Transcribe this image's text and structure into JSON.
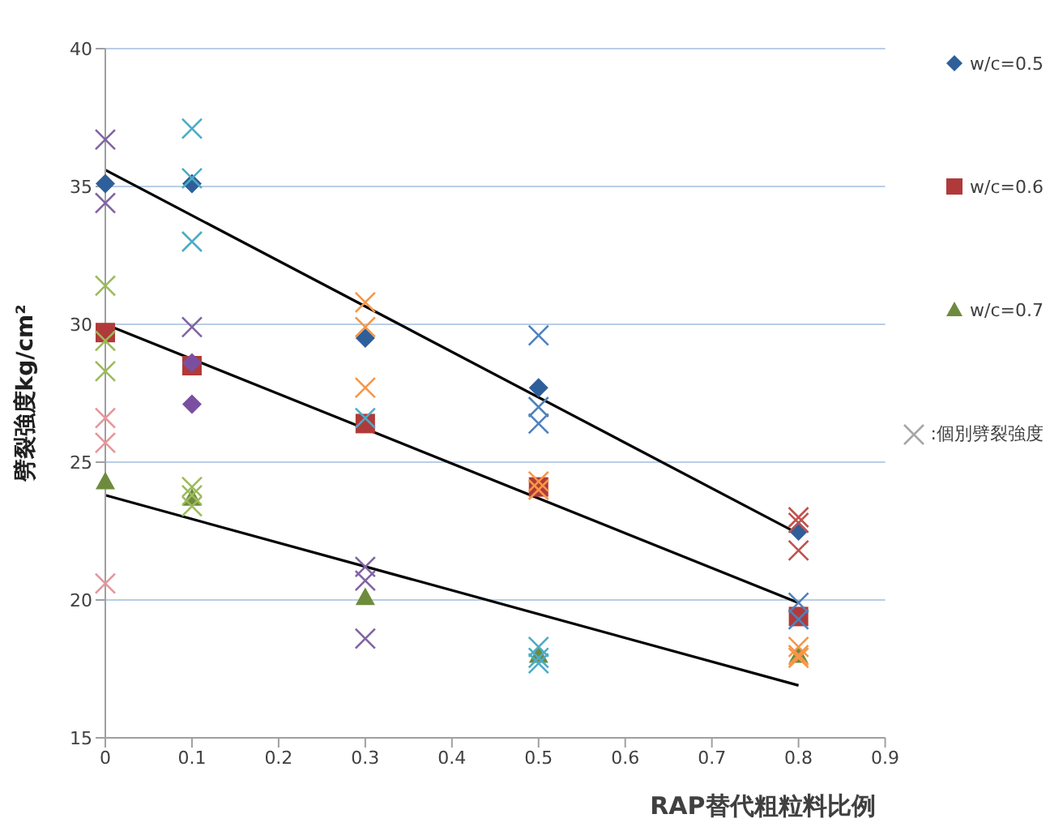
{
  "chart_data": {
    "type": "scatter",
    "xlabel": "RAP替代粗粒料比例",
    "ylabel": "劈裂強度kg/cm²",
    "xlim": [
      0,
      0.9
    ],
    "xticks": [
      0,
      0.1,
      0.2,
      0.3,
      0.4,
      0.5,
      0.6,
      0.7,
      0.8,
      0.9
    ],
    "ylim": [
      15,
      40
    ],
    "yticks": [
      15,
      20,
      25,
      30,
      35,
      40
    ],
    "grid": "y",
    "legend": "top right",
    "series": [
      {
        "name": "w/c=0.5",
        "marker": "diamond",
        "color": "#2f5f9a",
        "x": [
          0,
          0.1,
          0.3,
          0.5,
          0.8
        ],
        "values": [
          35.1,
          35.1,
          29.5,
          27.7,
          22.5
        ]
      },
      {
        "name": "w/c=0.6",
        "marker": "square",
        "color": "#b03a3a",
        "x": [
          0,
          0.1,
          0.3,
          0.5,
          0.8
        ],
        "values": [
          29.7,
          28.5,
          26.4,
          24.1,
          19.4
        ]
      },
      {
        "name": "w/c=0.7",
        "marker": "triangle",
        "color": "#6e8b3d",
        "x": [
          0,
          0.1,
          0.3,
          0.5,
          0.8
        ],
        "values": [
          24.3,
          23.7,
          20.1,
          18.0,
          18.0
        ]
      },
      {
        "marker": "diamond",
        "color": "#7b4fa0",
        "x": [
          0.1,
          0.1
        ],
        "values": [
          28.6,
          27.1
        ]
      },
      {
        "name": ":個別劈裂強度",
        "marker": "cross",
        "color": "#a6a6a6",
        "x": [
          0,
          0,
          0,
          0,
          0,
          0,
          0,
          0,
          0.1,
          0.1,
          0.1,
          0.1,
          0.1,
          0.1,
          0.1,
          0.3,
          0.3,
          0.3,
          0.3,
          0.3,
          0.3,
          0.3,
          0.5,
          0.5,
          0.5,
          0.5,
          0.5,
          0.5,
          0.5,
          0.5,
          0.8,
          0.8,
          0.8,
          0.8,
          0.8,
          0.8,
          0.8,
          0.8
        ],
        "values": [
          36.7,
          34.4,
          31.4,
          29.4,
          28.3,
          26.6,
          25.7,
          20.6,
          37.1,
          35.3,
          33.0,
          29.9,
          24.1,
          23.8,
          23.4,
          30.8,
          29.9,
          27.7,
          26.6,
          21.2,
          20.7,
          18.6,
          29.6,
          27.0,
          26.4,
          24.3,
          24.0,
          18.3,
          17.9,
          17.7,
          23.0,
          22.8,
          21.8,
          19.9,
          19.3,
          18.3,
          18.0,
          17.9
        ],
        "colors": [
          "#8064a2",
          "#8064a2",
          "#9bbb59",
          "#9bbb59",
          "#9bbb59",
          "#e6969a",
          "#e6969a",
          "#e6969a",
          "#4bacc6",
          "#4bacc6",
          "#4bacc6",
          "#8064a2",
          "#9bbb59",
          "#9bbb59",
          "#9bbb59",
          "#f79646",
          "#f79646",
          "#f79646",
          "#4bacc6",
          "#8064a2",
          "#8064a2",
          "#8064a2",
          "#4f81bd",
          "#4f81bd",
          "#4f81bd",
          "#f79646",
          "#f79646",
          "#4bacc6",
          "#4bacc6",
          "#4bacc6",
          "#c0504d",
          "#c0504d",
          "#c0504d",
          "#4f81bd",
          "#4f81bd",
          "#f79646",
          "#f79646",
          "#f79646"
        ]
      },
      {
        "type": "line",
        "marker": "none",
        "line_style": "solid",
        "color": "#000000",
        "x": [
          0,
          0.8
        ],
        "values": [
          35.6,
          22.4
        ]
      },
      {
        "type": "line",
        "marker": "none",
        "line_style": "solid",
        "color": "#000000",
        "x": [
          0,
          0.8
        ],
        "values": [
          30.0,
          19.9
        ]
      },
      {
        "type": "line",
        "marker": "none",
        "line_style": "solid",
        "color": "#000000",
        "x": [
          0,
          0.8
        ],
        "values": [
          23.8,
          16.9
        ]
      }
    ]
  }
}
